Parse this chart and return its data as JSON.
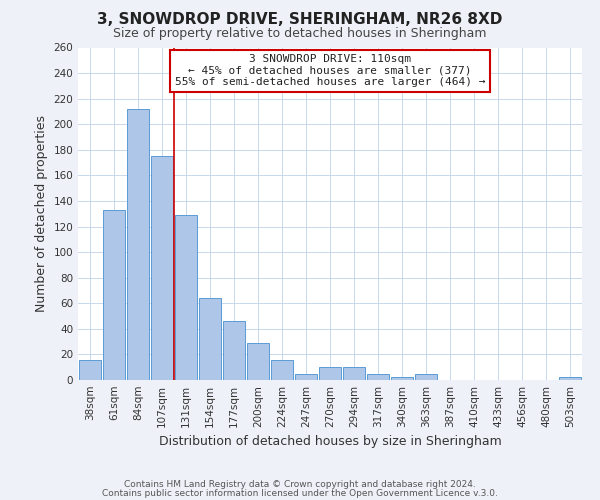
{
  "title": "3, SNOWDROP DRIVE, SHERINGHAM, NR26 8XD",
  "subtitle": "Size of property relative to detached houses in Sheringham",
  "xlabel": "Distribution of detached houses by size in Sheringham",
  "ylabel": "Number of detached properties",
  "bar_labels": [
    "38sqm",
    "61sqm",
    "84sqm",
    "107sqm",
    "131sqm",
    "154sqm",
    "177sqm",
    "200sqm",
    "224sqm",
    "247sqm",
    "270sqm",
    "294sqm",
    "317sqm",
    "340sqm",
    "363sqm",
    "387sqm",
    "410sqm",
    "433sqm",
    "456sqm",
    "480sqm",
    "503sqm"
  ],
  "bar_values": [
    16,
    133,
    212,
    175,
    129,
    64,
    46,
    29,
    16,
    5,
    10,
    10,
    5,
    2,
    5,
    0,
    0,
    0,
    0,
    0,
    2
  ],
  "bar_color": "#aec6e8",
  "bar_edge_color": "#5b9bd5",
  "ylim": [
    0,
    260
  ],
  "yticks": [
    0,
    20,
    40,
    60,
    80,
    100,
    120,
    140,
    160,
    180,
    200,
    220,
    240,
    260
  ],
  "annotation_box_title": "3 SNOWDROP DRIVE: 110sqm",
  "annotation_line1": "← 45% of detached houses are smaller (377)",
  "annotation_line2": "55% of semi-detached houses are larger (464) →",
  "annotation_box_color": "#ffffff",
  "annotation_box_edgecolor": "#cc0000",
  "vline_color": "#cc0000",
  "vline_x": 3.5,
  "footnote1": "Contains HM Land Registry data © Crown copyright and database right 2024.",
  "footnote2": "Contains public sector information licensed under the Open Government Licence v.3.0.",
  "bg_color": "#eef2f8",
  "plot_bg_color": "#ffffff",
  "grid_color": "#c8d8ec",
  "title_fontsize": 11,
  "subtitle_fontsize": 9,
  "axis_label_fontsize": 9,
  "tick_fontsize": 7.5,
  "annotation_fontsize": 8,
  "footnote_fontsize": 6.5
}
